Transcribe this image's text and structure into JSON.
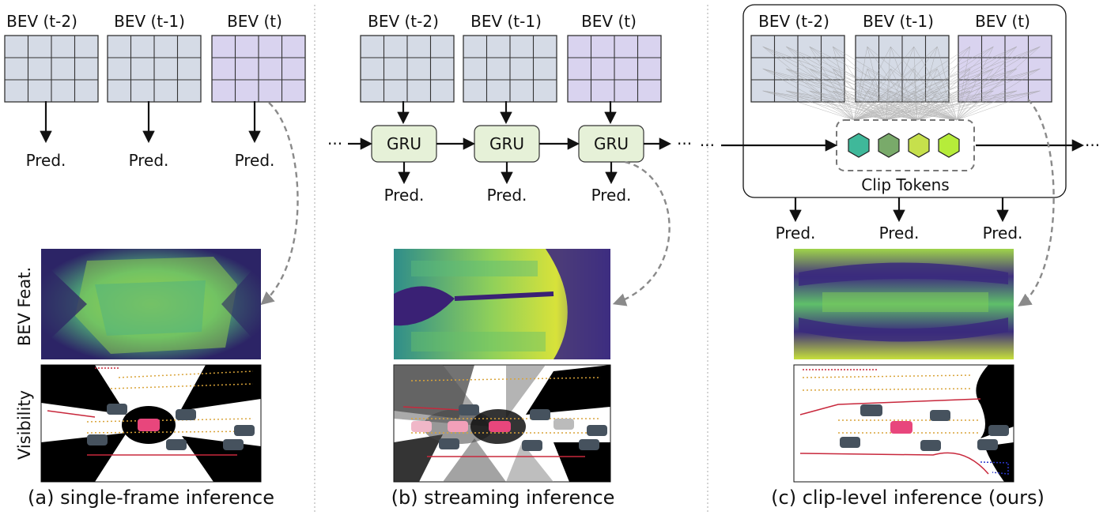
{
  "panels": [
    {
      "id": "a",
      "bev_labels": [
        "BEV (t-2)",
        "BEV (t-1)",
        "BEV (t)"
      ],
      "pred_labels": [
        "Pred.",
        "Pred.",
        "Pred."
      ],
      "caption": "(a) single-frame inference"
    },
    {
      "id": "b",
      "bev_labels": [
        "BEV (t-2)",
        "BEV (t-1)",
        "BEV (t)"
      ],
      "gru_labels": [
        "GRU",
        "GRU",
        "GRU"
      ],
      "pred_labels": [
        "Pred.",
        "Pred.",
        "Pred."
      ],
      "ellipsis": "···",
      "caption": "(b) streaming inference"
    },
    {
      "id": "c",
      "bev_labels": [
        "BEV (t-2)",
        "BEV (t-1)",
        "BEV (t)"
      ],
      "clip_tokens_label": "Clip Tokens",
      "pred_labels": [
        "Pred.",
        "Pred.",
        "Pred."
      ],
      "ellipsis": "···",
      "caption": "(c) clip-level inference (ours)"
    }
  ],
  "row_labels": {
    "bev_feat": "BEV Feat.",
    "visibility": "Visibility"
  },
  "colors": {
    "bev_past": "#d5dbe6",
    "bev_current": "#d9d3ef",
    "gru_fill": "#e6f1d8",
    "ego_car": "#e8467c",
    "other_car": "#46525e",
    "token_colors": [
      "#3fb89a",
      "#79aa6a",
      "#c6e04c",
      "#b6ec3a"
    ]
  },
  "icons": [
    "dashed-arrow-icon",
    "car-icon",
    "hexagon-token-icon"
  ]
}
